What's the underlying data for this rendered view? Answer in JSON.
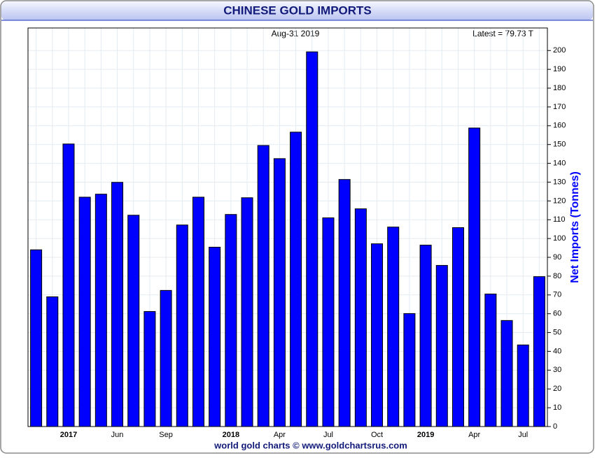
{
  "chart_data": {
    "type": "bar",
    "title": "CHINESE GOLD IMPORTS",
    "date_label": "Aug-31  2019",
    "latest_label": "Latest = 79.73 T",
    "y_axis_label": "Net Imports (Tonnes)",
    "footer": "world gold charts © www.goldchartsrus.com",
    "categories": [
      null,
      null,
      "2017",
      null,
      null,
      "Jun",
      null,
      null,
      "Sep",
      null,
      null,
      null,
      "2018",
      null,
      null,
      "Apr",
      null,
      null,
      "Jul",
      null,
      null,
      "Oct",
      null,
      null,
      "2019",
      null,
      null,
      "Apr",
      null,
      null,
      "Jul",
      null
    ],
    "values": [
      94,
      69,
      150.3,
      122,
      123.6,
      129.9,
      112.4,
      61.2,
      72.4,
      107.2,
      122,
      95.4,
      112.8,
      121.7,
      149.5,
      142.5,
      156.6,
      199.3,
      111,
      131.4,
      115.8,
      97.2,
      106.1,
      60.1,
      96.5,
      85.7,
      105.8,
      158.8,
      70.5,
      56.4,
      43.4,
      79.73
    ],
    "color": "#0000ff",
    "ylim": [
      0,
      212
    ],
    "yticks": [
      0,
      10,
      20,
      30,
      40,
      50,
      60,
      70,
      80,
      90,
      100,
      110,
      120,
      130,
      140,
      150,
      160,
      170,
      180,
      190,
      200
    ],
    "grid": true
  }
}
